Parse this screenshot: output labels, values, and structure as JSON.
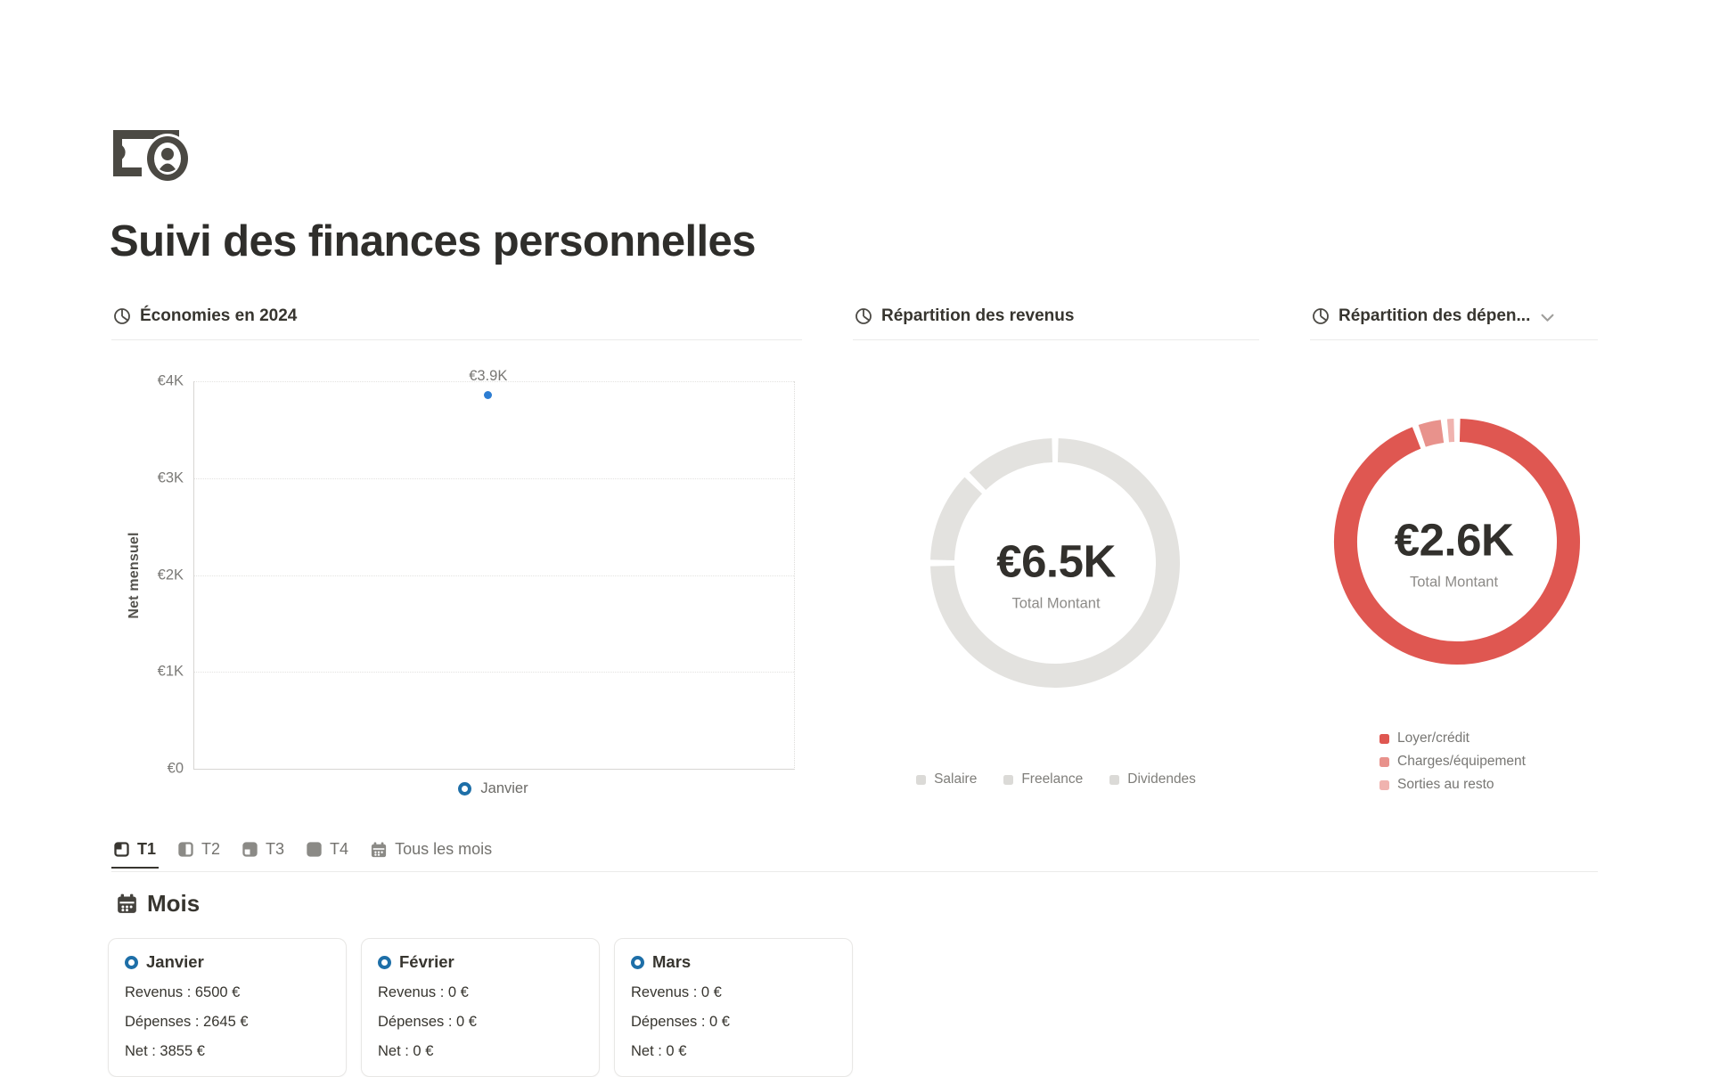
{
  "page": {
    "title": "Suivi des finances personnelles",
    "icon": "banknote-portrait-icon"
  },
  "charts": {
    "savings": {
      "title": "Économies en 2024",
      "ylabel": "Net mensuel",
      "yticks": [
        "€4K",
        "€3K",
        "€2K",
        "€1K",
        "€0"
      ],
      "point_label": "€3.9K",
      "legend_label": "Janvier"
    },
    "revenue": {
      "title": "Répartition des revenus",
      "center_value": "€6.5K",
      "center_label": "Total Montant",
      "legend": [
        "Salaire",
        "Freelance",
        "Dividendes"
      ]
    },
    "expenses": {
      "title_display": "Répartition des dépen...",
      "center_value": "€2.6K",
      "center_label": "Total Montant",
      "legend": [
        "Loyer/crédit",
        "Charges/équipement",
        "Sorties au resto"
      ]
    }
  },
  "chart_data": [
    {
      "type": "scatter",
      "title": "Économies en 2024",
      "ylabel": "Net mensuel",
      "x": [
        "Janvier"
      ],
      "values": [
        3855
      ],
      "point_label": "€3.9K",
      "point_color": "#2d7dd2",
      "ylim": [
        0,
        4000
      ],
      "ytick_labels": [
        "€0",
        "€1K",
        "€2K",
        "€3K",
        "€4K"
      ],
      "grid": "dotted-horizontal",
      "legend_position": "bottom"
    },
    {
      "type": "pie",
      "donut": true,
      "title": "Répartition des revenus",
      "total_display": "€6.5K",
      "total_value": 6500,
      "center_label": "Total Montant",
      "segments": [
        {
          "name": "Salaire",
          "value_est": 4875,
          "pct": 75,
          "color": "#e3e2df"
        },
        {
          "name": "Freelance",
          "value_est": 815,
          "pct": 12.5,
          "color": "#e3e2df"
        },
        {
          "name": "Dividendes",
          "value_est": 810,
          "pct": 12.5,
          "color": "#e3e2df"
        }
      ],
      "legend_position": "bottom"
    },
    {
      "type": "pie",
      "donut": true,
      "title": "Répartition des dépenses",
      "total_display": "€2.6K",
      "total_value": 2645,
      "center_label": "Total Montant",
      "segments": [
        {
          "name": "Loyer/crédit",
          "value_est": 2500,
          "pct": 94.5,
          "color": "#df5751"
        },
        {
          "name": "Charges/équipement",
          "value_est": 100,
          "pct": 3.8,
          "color": "#e8928c"
        },
        {
          "name": "Sorties au resto",
          "value_est": 45,
          "pct": 1.7,
          "color": "#f0b3af"
        }
      ],
      "legend_position": "bottom"
    }
  ],
  "tabs": {
    "items": [
      {
        "label": "T1",
        "active": true
      },
      {
        "label": "T2",
        "active": false
      },
      {
        "label": "T3",
        "active": false
      },
      {
        "label": "T4",
        "active": false
      },
      {
        "label": "Tous les mois",
        "active": false
      }
    ]
  },
  "months": {
    "heading": "Mois",
    "cards": [
      {
        "name": "Janvier",
        "lines": [
          "Revenus : 6500 €",
          "Dépenses : 2645 €",
          "Net : 3855 €"
        ]
      },
      {
        "name": "Février",
        "lines": [
          "Revenus : 0 €",
          "Dépenses : 0 €",
          "Net : 0 €"
        ]
      },
      {
        "name": "Mars",
        "lines": [
          "Revenus : 0 €",
          "Dépenses : 0 €",
          "Net : 0 €"
        ]
      }
    ]
  },
  "colors": {
    "text_dark": "#37352f",
    "text_gray": "#787774",
    "accent_blue": "#1e6fa8",
    "point_blue": "#2d7dd2",
    "donut_gray": "#e3e2df",
    "red_main": "#df5751",
    "red_mid": "#e8928c",
    "red_light": "#f0b3af",
    "divider": "#ebebea"
  }
}
